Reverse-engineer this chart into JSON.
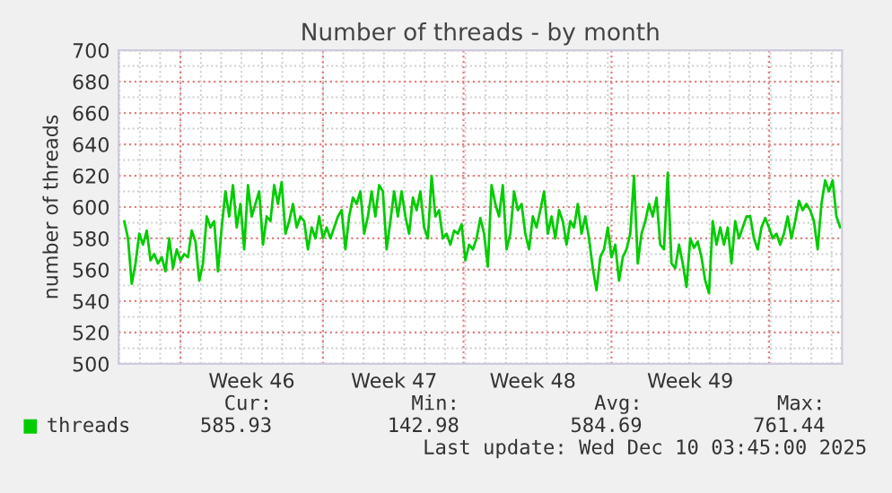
{
  "chart_data": {
    "type": "line",
    "title": "Number of threads - by month",
    "ylabel": "number of threads",
    "series": [
      {
        "name": "threads",
        "color": "#00cc00",
        "values": [
          591,
          580,
          551,
          564,
          583,
          576,
          585,
          566,
          570,
          564,
          568,
          559,
          580,
          561,
          573,
          566,
          570,
          568,
          585,
          578,
          553,
          564,
          594,
          587,
          591,
          559,
          587,
          610,
          594,
          614,
          587,
          602,
          573,
          614,
          594,
          602,
          610,
          576,
          594,
          591,
          614,
          602,
          616,
          583,
          591,
          602,
          587,
          594,
          591,
          573,
          587,
          580,
          594,
          580,
          587,
          580,
          587,
          594,
          598,
          573,
          594,
          606,
          602,
          610,
          583,
          594,
          610,
          594,
          614,
          610,
          573,
          591,
          610,
          594,
          610,
          594,
          583,
          606,
          598,
          610,
          587,
          580,
          620,
          594,
          598,
          580,
          583,
          576,
          585,
          583,
          589,
          566,
          576,
          573,
          580,
          593,
          583,
          562,
          614,
          602,
          594,
          614,
          573,
          583,
          610,
          598,
          602,
          583,
          573,
          594,
          587,
          598,
          610,
          583,
          594,
          580,
          598,
          591,
          576,
          591,
          587,
          602,
          583,
          594,
          580,
          561,
          547,
          568,
          573,
          587,
          568,
          576,
          553,
          568,
          573,
          583,
          620,
          564,
          583,
          591,
          602,
          594,
          606,
          576,
          573,
          622,
          564,
          561,
          576,
          564,
          549,
          580,
          574,
          578,
          568,
          553,
          545,
          591,
          576,
          587,
          576,
          587,
          564,
          591,
          580,
          587,
          594,
          594,
          580,
          573,
          587,
          593,
          587,
          580,
          583,
          576,
          583,
          594,
          580,
          591,
          604,
          598,
          602,
          598,
          591,
          573,
          602,
          617,
          610,
          617,
          594,
          587
        ]
      }
    ],
    "categories": [
      null,
      null,
      null,
      null,
      null,
      null,
      null,
      null,
      null,
      null,
      null,
      null,
      null,
      null,
      null,
      null,
      null,
      null,
      null,
      null,
      null,
      null,
      null,
      null,
      null,
      null,
      null,
      null,
      null,
      null,
      null,
      null,
      null,
      null,
      "Week 46",
      null,
      null,
      null,
      null,
      null,
      null,
      null,
      null,
      null,
      null,
      null,
      null,
      null,
      null,
      null,
      null,
      null,
      null,
      null,
      null,
      null,
      null,
      null,
      null,
      null,
      null,
      null,
      null,
      null,
      null,
      null,
      null,
      null,
      null,
      null,
      null,
      null,
      "Week 47",
      null,
      null,
      null,
      null,
      null,
      null,
      null,
      null,
      null,
      null,
      null,
      null,
      null,
      null,
      null,
      null,
      null,
      null,
      null,
      null,
      null,
      null,
      null,
      null,
      null,
      null,
      null,
      null,
      null,
      null,
      null,
      null,
      null,
      null,
      null,
      null,
      "Week 48",
      null,
      null,
      null,
      null,
      null,
      null,
      null,
      null,
      null,
      null,
      null,
      null,
      null,
      null,
      null,
      null,
      null,
      null,
      null,
      null,
      null,
      null,
      null,
      null,
      null,
      null,
      null,
      null,
      null,
      null,
      null,
      null,
      null,
      null,
      null,
      null,
      null,
      null,
      null,
      null,
      null,
      "Week 49",
      null,
      null,
      null,
      null,
      null,
      null,
      null,
      null,
      null,
      null,
      null,
      null,
      null,
      null,
      null,
      null,
      null,
      null,
      null,
      null,
      null,
      null,
      null,
      null,
      null,
      null,
      null,
      null,
      null,
      null,
      null,
      null,
      null,
      null,
      null,
      null,
      null,
      null,
      null,
      null
    ],
    "ylim": [
      500,
      700
    ],
    "yticks": [
      500,
      520,
      540,
      560,
      580,
      600,
      620,
      640,
      660,
      680,
      700
    ],
    "grid": true,
    "legend": "bottom",
    "marker": "none",
    "line_style": "solid",
    "annotations": [
      "Cur:",
      "Min:",
      "Avg:",
      "Max:",
      "585.93",
      "142.98",
      "584.69",
      "761.44",
      "Last update: Wed Dec 10 03:45:00 2025"
    ]
  }
}
